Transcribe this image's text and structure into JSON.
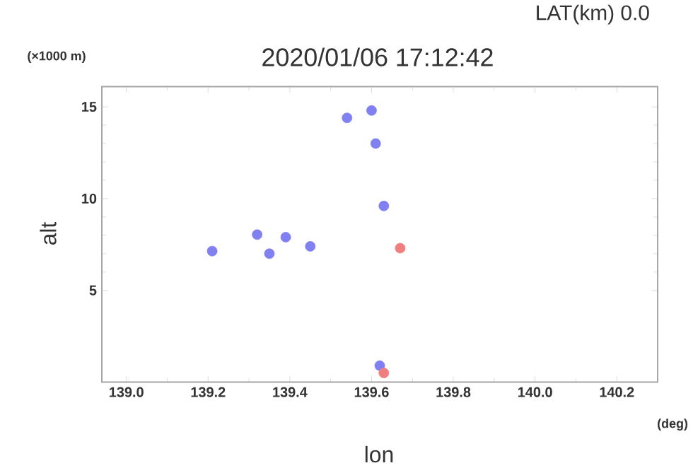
{
  "chart_data": {
    "type": "scatter",
    "title": "2020/01/06 17:12:42",
    "subtitle": "LAT(km) 0.0",
    "xlabel": "lon",
    "ylabel": "alt",
    "annotations": [
      "(×1000 m)",
      "(deg)"
    ],
    "xlim": [
      138.94,
      140.3
    ],
    "xticks": [
      {
        "value": 139.0,
        "label": "139.0"
      },
      {
        "value": 139.2,
        "label": "139.2"
      },
      {
        "value": 139.4,
        "label": "139.4"
      },
      {
        "value": 139.6,
        "label": "139.6"
      },
      {
        "value": 139.8,
        "label": "139.8"
      },
      {
        "value": 140.0,
        "label": "140.0"
      },
      {
        "value": 140.2,
        "label": "140.2"
      }
    ],
    "ylim": [
      0,
      16.1
    ],
    "yticks": [
      5,
      10,
      15
    ],
    "grid": false,
    "series": [
      {
        "color": "#8080f0",
        "x": [
          139.21,
          139.32,
          139.35,
          139.39,
          139.45,
          139.54,
          139.6,
          139.61,
          139.63,
          139.62
        ],
        "values": [
          7.14,
          8.04,
          7.0,
          7.9,
          7.4,
          14.4,
          14.8,
          13.0,
          9.6,
          0.9
        ]
      },
      {
        "color": "#f08080",
        "x": [
          139.67,
          139.63
        ],
        "values": [
          7.3,
          0.5
        ]
      }
    ]
  }
}
